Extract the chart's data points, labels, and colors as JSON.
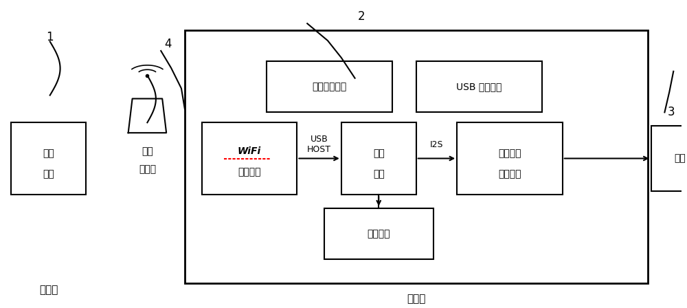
{
  "bg_color": "#ffffff",
  "line_color": "#000000",
  "box_color": "#ffffff",
  "text_color": "#000000",
  "wifi_underline_color": "#ff0000",
  "figsize": [
    10.0,
    4.48
  ],
  "dpi": 100,
  "labels": {
    "num1": "1",
    "num2": "2",
    "num3": "3",
    "num4": "4",
    "mobile_line1": "移动",
    "mobile_line2": "终端",
    "router_line1": "无线",
    "router_line2": "路由器",
    "speaker": "音箱",
    "send": "发送端",
    "receive": "接收端",
    "wifi_line1": "WiFi",
    "wifi_line2": "网络单元",
    "main_ctrl_line1": "主控",
    "main_ctrl_line2": "单元",
    "dac_line1": "数模转换",
    "dac_line2": "输出单元",
    "storage": "存储单元",
    "key_light": "按键和提示灯",
    "usb_interface": "USB 接口单元",
    "usb_host": "USB\nHOST",
    "i2s": "I2S"
  }
}
